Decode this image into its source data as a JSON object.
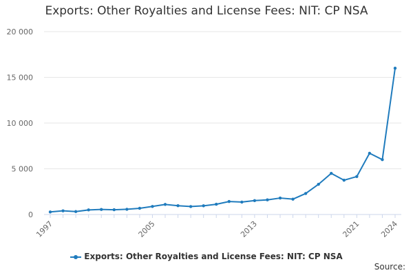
{
  "chart_data": {
    "type": "line",
    "title": "Exports: Other Royalties and License Fees: NIT: CP NSA",
    "x": [
      1997,
      1998,
      1999,
      2000,
      2001,
      2002,
      2003,
      2004,
      2005,
      2006,
      2007,
      2008,
      2009,
      2010,
      2011,
      2012,
      2013,
      2014,
      2015,
      2016,
      2017,
      2018,
      2019,
      2020,
      2021,
      2022,
      2023,
      2024
    ],
    "x_tick_labels": [
      "1997",
      "2005",
      "2013",
      "2021",
      "2024"
    ],
    "x_tick_values": [
      1997,
      2005,
      2013,
      2021,
      2024
    ],
    "y_tick_labels": [
      "0",
      "5 000",
      "10 000",
      "15 000",
      "20 000"
    ],
    "y_tick_values": [
      0,
      5000,
      10000,
      15000,
      20000
    ],
    "ylim": [
      0,
      20000
    ],
    "xlim": [
      1997,
      2024
    ],
    "series": [
      {
        "name": "Exports: Other Royalties and License Fees: NIT: CP NSA",
        "color": "#1f7bbd",
        "values": [
          280,
          400,
          320,
          500,
          550,
          520,
          570,
          680,
          880,
          1100,
          960,
          870,
          950,
          1120,
          1420,
          1360,
          1520,
          1600,
          1800,
          1680,
          2300,
          3300,
          4500,
          3750,
          4150,
          6700,
          6000,
          16000
        ]
      }
    ],
    "grid": true,
    "legend_position": "bottom"
  },
  "legend": {
    "label": "Exports: Other Royalties and License Fees: NIT: CP NSA"
  },
  "source_label": "Source:",
  "colors": {
    "series": "#1f7bbd",
    "grid": "#e6e6e6",
    "axis": "#ccd6eb"
  }
}
